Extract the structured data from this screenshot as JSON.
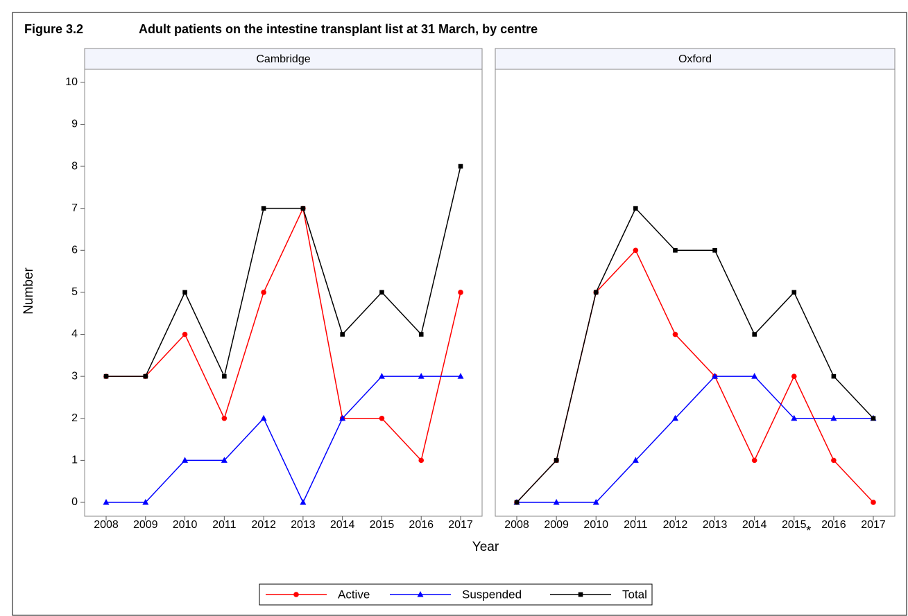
{
  "header": {
    "label": "Figure 3.2",
    "title": "Adult patients on the intestine transplant list at 31 March, by centre"
  },
  "figure": {
    "x_label": "Year",
    "y_label": "Number"
  },
  "chart_data": [
    {
      "type": "line",
      "title": "Cambridge",
      "categories": [
        "2008",
        "2009",
        "2010",
        "2011",
        "2012",
        "2013",
        "2014",
        "2015",
        "2016",
        "2017"
      ],
      "series": [
        {
          "name": "Active",
          "color": "#ff0000",
          "marker": "circle",
          "values": [
            3,
            3,
            4,
            2,
            5,
            7,
            2,
            2,
            1,
            5
          ]
        },
        {
          "name": "Suspended",
          "color": "#0000ff",
          "marker": "triangle",
          "values": [
            0,
            0,
            1,
            1,
            2,
            0,
            2,
            3,
            3,
            3
          ]
        },
        {
          "name": "Total",
          "color": "#000000",
          "marker": "square",
          "values": [
            3,
            3,
            5,
            3,
            7,
            7,
            4,
            5,
            4,
            8
          ]
        }
      ],
      "ylim": [
        -0.33,
        10.31
      ],
      "yticks": [
        0,
        1,
        2,
        3,
        4,
        5,
        6,
        7,
        8,
        9,
        10
      ]
    },
    {
      "type": "line",
      "title": "Oxford",
      "categories": [
        "2008",
        "2009",
        "2010",
        "2011",
        "2012",
        "2013",
        "2014",
        "2015",
        "2016",
        "2017"
      ],
      "series": [
        {
          "color": "#ff0000",
          "marker": "circle",
          "values": [
            0,
            1,
            5,
            6,
            4,
            3,
            1,
            3,
            1,
            0
          ]
        },
        {
          "color": "#0000ff",
          "marker": "triangle",
          "values": [
            0,
            0,
            0,
            1,
            2,
            3,
            3,
            2,
            2,
            2
          ]
        },
        {
          "color": "#000000",
          "marker": "square",
          "values": [
            0,
            1,
            5,
            7,
            6,
            6,
            4,
            5,
            3,
            2
          ]
        }
      ],
      "ylim": [
        -0.33,
        10.31
      ],
      "annotation": "*"
    }
  ]
}
